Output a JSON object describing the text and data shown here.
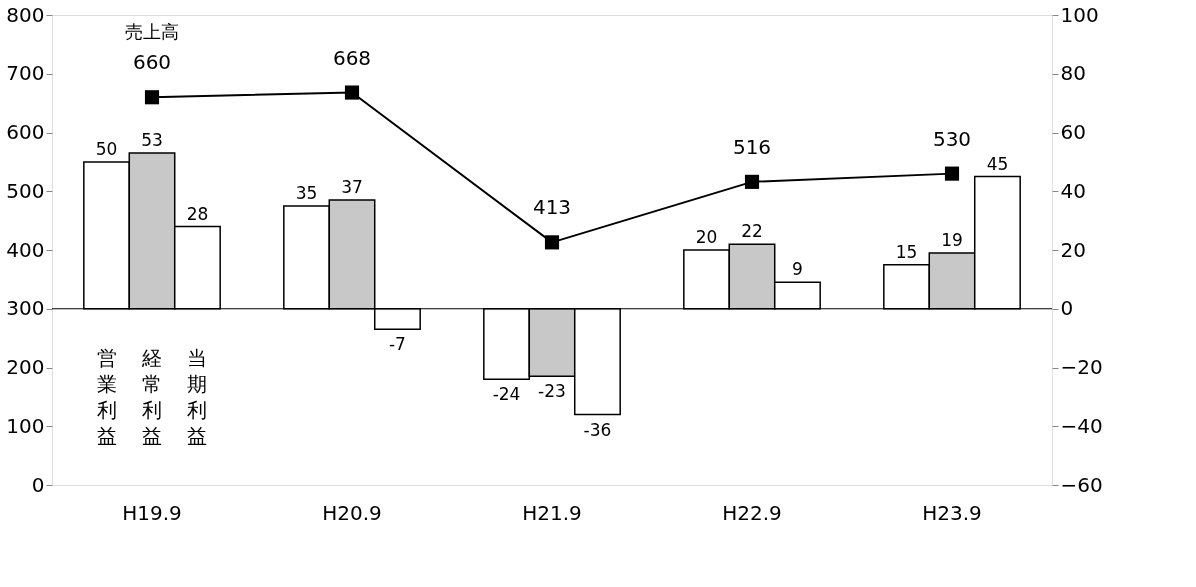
{
  "chart_data": {
    "type": "bar",
    "categories": [
      "H19.9",
      "H20.9",
      "H21.9",
      "H22.9",
      "H23.9"
    ],
    "series": [
      {
        "name": "営業利益",
        "color": "#ffffff",
        "values": [
          50,
          35,
          -24,
          20,
          15
        ],
        "axis": "y2"
      },
      {
        "name": "経常利益",
        "color": "#c8c8c8",
        "values": [
          53,
          37,
          -23,
          22,
          19
        ],
        "axis": "y2"
      },
      {
        "name": "当期利益",
        "color": "#ffffff",
        "values": [
          28,
          -7,
          -36,
          9,
          45
        ],
        "axis": "y2"
      },
      {
        "name": "売上高",
        "type": "line",
        "color": "#000000",
        "values": [
          660,
          668,
          413,
          516,
          530
        ],
        "marker": "square",
        "line_style": "solid"
      }
    ],
    "ylim": [
      0,
      800
    ],
    "yticks": [
      0,
      100,
      200,
      300,
      400,
      500,
      600,
      700,
      800
    ],
    "y2lim": [
      -60,
      100
    ],
    "y2ticks": [
      -60,
      -40,
      -20,
      0,
      20,
      40,
      60,
      80,
      100
    ],
    "ref_lines": [
      {
        "axis": "y2",
        "value": 0
      }
    ],
    "data_labels": true,
    "grid": false,
    "legend": false
  }
}
